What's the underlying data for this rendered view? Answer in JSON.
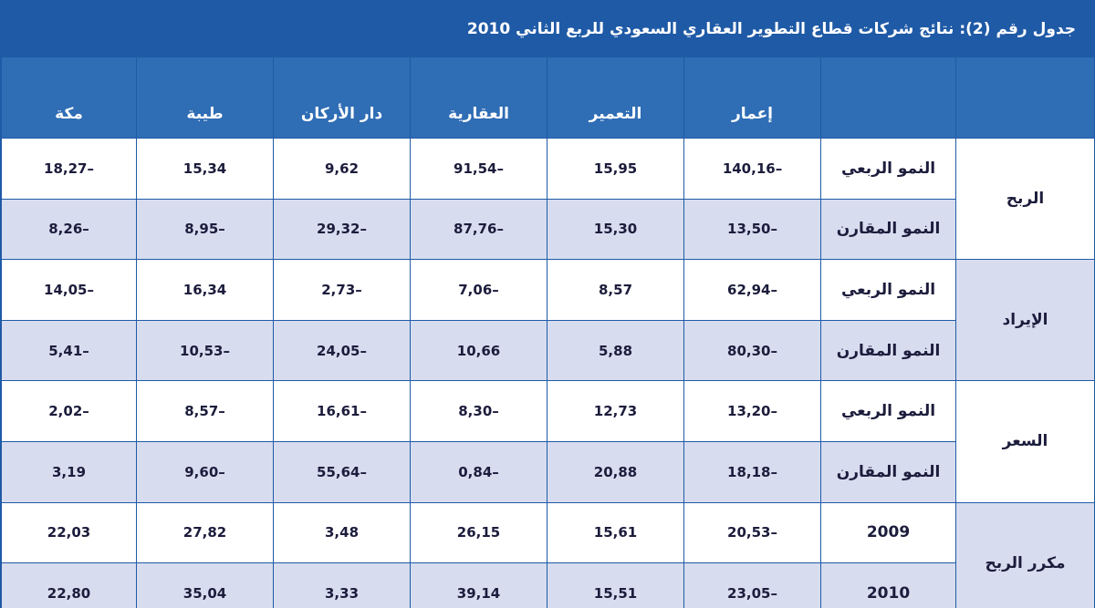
{
  "header": {
    "title": "جدول رقم (2): نتائج شركات قطاع التطوير العقاري السعودي للربع الثاني 2010"
  },
  "table": {
    "columns": [
      "إعمار",
      "التعمير",
      "العقارية",
      "دار الأركان",
      "طيبة",
      "مكة"
    ],
    "groups": [
      {
        "label": "الربح",
        "rows": [
          {
            "label": "النمو الربعي",
            "values": [
              "140,16–",
              "15,95",
              "91,54–",
              "9,62",
              "15,34",
              "18,27–"
            ]
          },
          {
            "label": "النمو المقارن",
            "values": [
              "13,50–",
              "15,30",
              "87,76–",
              "29,32–",
              "8,95–",
              "8,26–"
            ]
          }
        ]
      },
      {
        "label": "الإيراد",
        "rows": [
          {
            "label": "النمو الربعي",
            "values": [
              "62,94–",
              "8,57",
              "7,06–",
              "2,73–",
              "16,34",
              "14,05–"
            ]
          },
          {
            "label": "النمو المقارن",
            "values": [
              "80,30–",
              "5,88",
              "10,66",
              "24,05–",
              "10,53–",
              "5,41–"
            ]
          }
        ]
      },
      {
        "label": "السعر",
        "rows": [
          {
            "label": "النمو الربعي",
            "values": [
              "13,20–",
              "12,73",
              "8,30–",
              "16,61–",
              "8,57–",
              "2,02–"
            ]
          },
          {
            "label": "النمو المقارن",
            "values": [
              "18,18–",
              "20,88",
              "0,84–",
              "55,64–",
              "9,60–",
              "3,19"
            ]
          }
        ]
      },
      {
        "label": "مكرر الربح",
        "rows": [
          {
            "label": "2009",
            "values": [
              "20,53–",
              "15,61",
              "26,15",
              "3,48",
              "27,82",
              "22,03"
            ]
          },
          {
            "label": "2010",
            "values": [
              "23,05–",
              "15,51",
              "39,14",
              "3,33",
              "35,04",
              "22,80"
            ]
          }
        ]
      }
    ]
  }
}
